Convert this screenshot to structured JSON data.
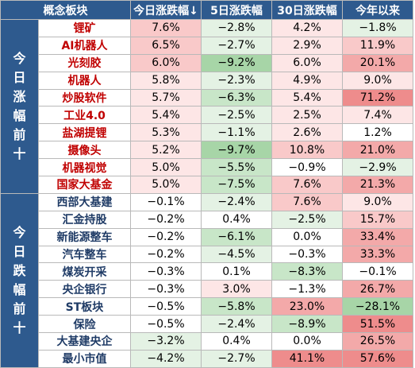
{
  "headers": [
    "概念板块",
    "今日涨跌幅↓",
    "5日涨跌幅",
    "30日涨跌幅",
    "今年以来"
  ],
  "groups": [
    {
      "label": "今日涨幅前十",
      "tone": "top",
      "rows": [
        {
          "name": "锂矿",
          "values": [
            "7.6%",
            "−2.8%",
            "4.2%",
            "−1.8%"
          ],
          "shades": [
            "p2",
            "g1",
            "p1",
            "g1"
          ]
        },
        {
          "name": "AI机器人",
          "values": [
            "6.5%",
            "−2.7%",
            "2.9%",
            "11.9%"
          ],
          "shades": [
            "p2",
            "g1",
            "p1",
            "p2"
          ]
        },
        {
          "name": "光刻胶",
          "values": [
            "6.0%",
            "−9.2%",
            "6.0%",
            "20.1%"
          ],
          "shades": [
            "p2",
            "g3",
            "p1",
            "p3"
          ]
        },
        {
          "name": "机器人",
          "values": [
            "5.8%",
            "−2.3%",
            "4.9%",
            "9.0%"
          ],
          "shades": [
            "p1",
            "g1",
            "p1",
            "p1"
          ]
        },
        {
          "name": "炒股软件",
          "values": [
            "5.7%",
            "−6.3%",
            "5.4%",
            "71.2%"
          ],
          "shades": [
            "p1",
            "g2",
            "p1",
            "p4"
          ]
        },
        {
          "name": "工业4.0",
          "values": [
            "5.4%",
            "−2.5%",
            "2.5%",
            "7.4%"
          ],
          "shades": [
            "p1",
            "g1",
            "p1",
            "p1"
          ]
        },
        {
          "name": "盐湖提锂",
          "values": [
            "5.3%",
            "−1.1%",
            "2.6%",
            "1.2%"
          ],
          "shades": [
            "p1",
            "g1",
            "p1",
            "w"
          ]
        },
        {
          "name": "摄像头",
          "values": [
            "5.2%",
            "−9.7%",
            "10.8%",
            "21.0%"
          ],
          "shades": [
            "p1",
            "g3",
            "p2",
            "p3"
          ]
        },
        {
          "name": "机器视觉",
          "values": [
            "5.0%",
            "−5.5%",
            "−0.9%",
            "−2.9%"
          ],
          "shades": [
            "p1",
            "g2",
            "w",
            "g1"
          ]
        },
        {
          "name": "国家大基金",
          "values": [
            "5.0%",
            "−7.5%",
            "7.6%",
            "21.3%"
          ],
          "shades": [
            "p1",
            "g2",
            "p2",
            "p3"
          ]
        }
      ]
    },
    {
      "label": "今日跌幅前十",
      "tone": "bottom",
      "rows": [
        {
          "name": "西部大基建",
          "values": [
            "−0.1%",
            "−2.4%",
            "7.6%",
            "9.0%"
          ],
          "shades": [
            "w",
            "g1",
            "p2",
            "p1"
          ]
        },
        {
          "name": "汇金持股",
          "values": [
            "−0.2%",
            "0.4%",
            "−2.5%",
            "15.7%"
          ],
          "shades": [
            "w",
            "w",
            "g1",
            "p2"
          ]
        },
        {
          "name": "新能源整车",
          "values": [
            "−0.2%",
            "−6.1%",
            "0.0%",
            "33.4%"
          ],
          "shades": [
            "w",
            "g2",
            "w",
            "p3"
          ]
        },
        {
          "name": "汽车整车",
          "values": [
            "−0.2%",
            "−4.5%",
            "−0.3%",
            "33.3%"
          ],
          "shades": [
            "w",
            "g1",
            "w",
            "p3"
          ]
        },
        {
          "name": "煤炭开采",
          "values": [
            "−0.3%",
            "0.1%",
            "−8.3%",
            "−0.1%"
          ],
          "shades": [
            "w",
            "w",
            "g2",
            "w"
          ]
        },
        {
          "name": "央企银行",
          "values": [
            "−0.3%",
            "3.0%",
            "−1.3%",
            "26.7%"
          ],
          "shades": [
            "w",
            "p1",
            "w",
            "p3"
          ]
        },
        {
          "name": "ST板块",
          "values": [
            "−0.5%",
            "−5.8%",
            "23.0%",
            "−28.1%"
          ],
          "shades": [
            "w",
            "g2",
            "p3",
            "g3"
          ]
        },
        {
          "name": "保险",
          "values": [
            "−0.5%",
            "−2.4%",
            "−8.9%",
            "51.5%"
          ],
          "shades": [
            "w",
            "g1",
            "g2",
            "p4"
          ]
        },
        {
          "name": "大基建央企",
          "values": [
            "−3.2%",
            "0.4%",
            "0.0%",
            "26.5%"
          ],
          "shades": [
            "g1",
            "w",
            "w",
            "p3"
          ]
        },
        {
          "name": "最小市值",
          "values": [
            "−4.2%",
            "−2.7%",
            "41.1%",
            "57.6%"
          ],
          "shades": [
            "g1",
            "g1",
            "p4",
            "p4"
          ]
        }
      ]
    }
  ]
}
